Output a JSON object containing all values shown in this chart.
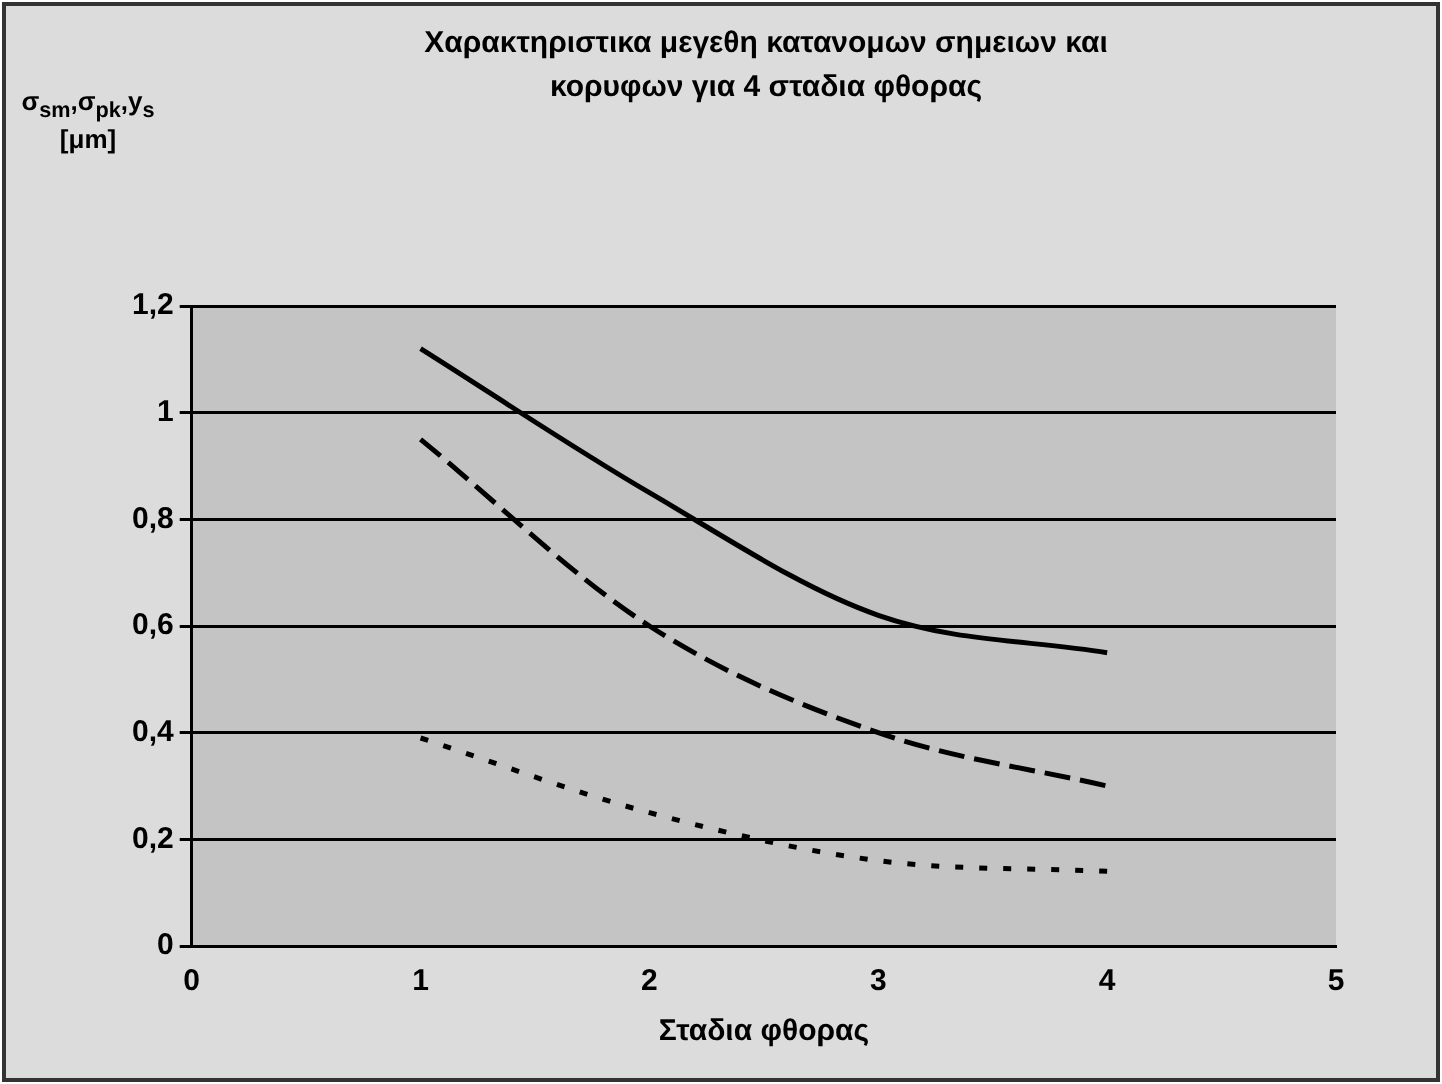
{
  "chart_data": {
    "type": "line",
    "title": "Χαρακτηριστικα μεγεθη κατανομων σημειων και κορυφων για 4 σταδια φθορας",
    "xlabel": "Σταδια φθορας",
    "ylabel": "σ$_{sm}$,σ$_{pk}$,y$_{s}$ [μm]",
    "x": [
      1,
      2,
      3,
      4
    ],
    "series": [
      {
        "color": "#000000",
        "line_style": "solid",
        "values": [
          1.12,
          0.85,
          0.62,
          0.55
        ]
      },
      {
        "color": "#000000",
        "line_style": "dashed",
        "values": [
          0.95,
          0.6,
          0.4,
          0.3
        ]
      },
      {
        "color": "#000000",
        "line_style": "dotted",
        "values": [
          0.39,
          0.25,
          0.16,
          0.14
        ]
      }
    ],
    "xlim": [
      0,
      5
    ],
    "xticks": [
      0,
      1,
      2,
      3,
      4,
      5
    ],
    "ylim": [
      0,
      1.2
    ],
    "yticks": [
      0,
      {
        "value": 0.2,
        "label": "0,2"
      },
      {
        "value": 0.4,
        "label": "0,4"
      },
      {
        "value": 0.6,
        "label": "0,6"
      },
      {
        "value": 0.8,
        "label": "0,8"
      },
      1,
      {
        "value": 1.2,
        "label": "1,2"
      }
    ],
    "grid": "y",
    "legend": false,
    "marker": "none"
  }
}
